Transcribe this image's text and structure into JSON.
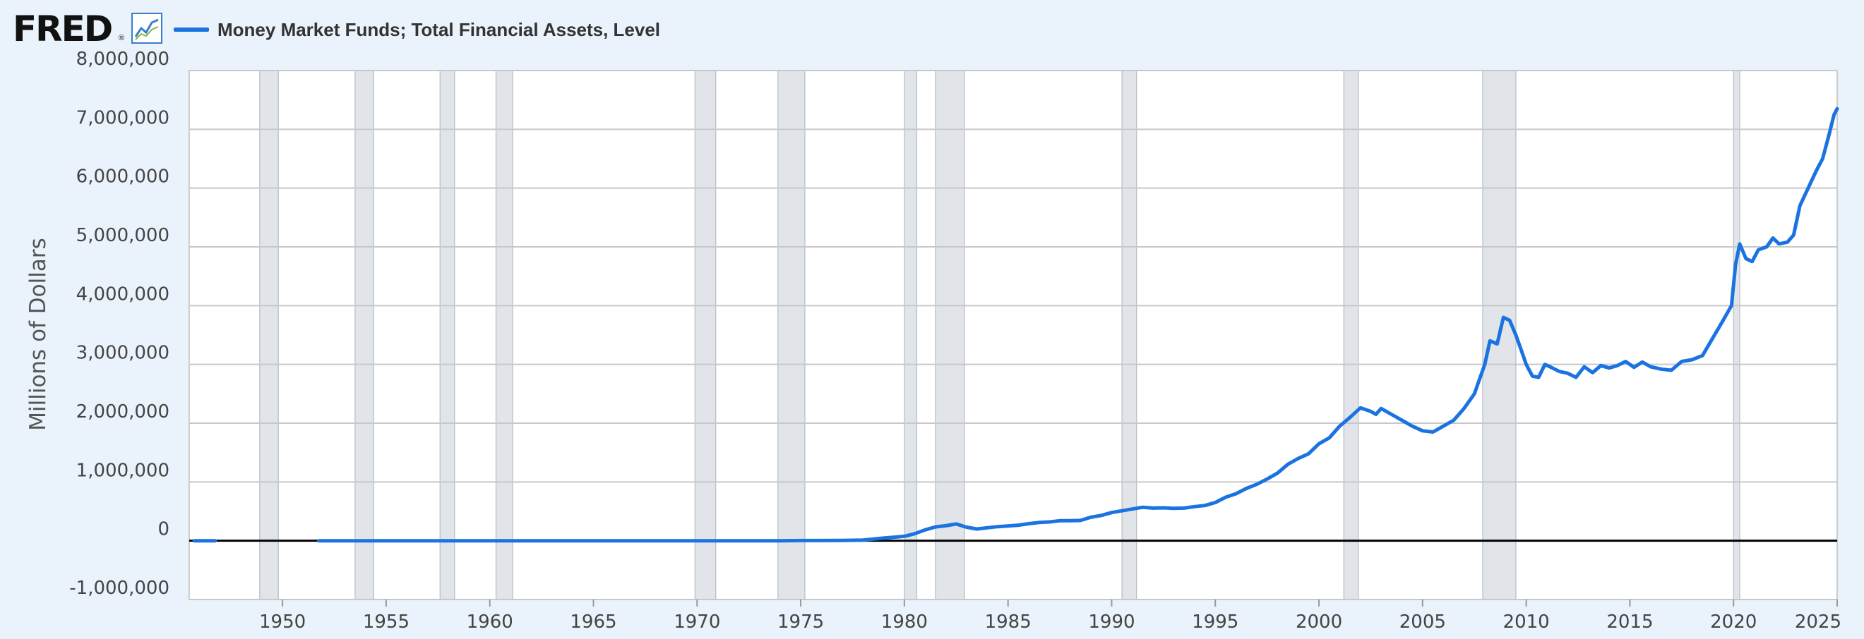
{
  "header": {
    "logo_text": "FRED",
    "logo_mark": "®",
    "logo_icon": "chart-line-icon"
  },
  "colors": {
    "background": "#eaf2fb",
    "plot_bg": "#ffffff",
    "series": "#1a73e0",
    "recession": "#e1e5ea",
    "gridline": "#c8c8c8",
    "zero_line": "#000000"
  },
  "chart_data": {
    "type": "line",
    "title": "",
    "xlabel": "",
    "ylabel": "Millions of Dollars",
    "xlim": [
      1945.5,
      2025.0
    ],
    "ylim": [
      -1000000,
      8000000
    ],
    "y_ticks": [
      -1000000,
      0,
      1000000,
      2000000,
      3000000,
      4000000,
      5000000,
      6000000,
      7000000,
      8000000
    ],
    "y_tick_labels": [
      "-1,000,000",
      "0",
      "1,000,000",
      "2,000,000",
      "3,000,000",
      "4,000,000",
      "5,000,000",
      "6,000,000",
      "7,000,000",
      "8,000,000"
    ],
    "x_ticks": [
      1950,
      1955,
      1960,
      1965,
      1970,
      1975,
      1980,
      1985,
      1990,
      1995,
      2000,
      2005,
      2010,
      2015,
      2020,
      2025
    ],
    "x_tick_labels": [
      "1950",
      "1955",
      "1960",
      "1965",
      "1970",
      "1975",
      "1980",
      "1985",
      "1990",
      "1995",
      "2000",
      "2005",
      "2010",
      "2015",
      "2020",
      "2025"
    ],
    "grid": true,
    "legend": "top-left",
    "recessions": [
      [
        1948.9,
        1949.8
      ],
      [
        1953.5,
        1954.4
      ],
      [
        1957.6,
        1958.3
      ],
      [
        1960.3,
        1961.1
      ],
      [
        1969.9,
        1970.9
      ],
      [
        1973.9,
        1975.2
      ],
      [
        1980.0,
        1980.6
      ],
      [
        1981.5,
        1982.9
      ],
      [
        1990.5,
        1991.2
      ],
      [
        2001.2,
        2001.9
      ],
      [
        2007.9,
        2009.5
      ],
      [
        2020.0,
        2020.3
      ]
    ],
    "series": [
      {
        "name": "Money Market Funds; Total Financial Assets, Level",
        "segments": [
          [
            [
              1945.75,
              0
            ],
            [
              1946.75,
              0
            ]
          ],
          [
            [
              1951.75,
              0
            ],
            [
              1955,
              0
            ],
            [
              1960,
              0
            ],
            [
              1965,
              0
            ],
            [
              1970,
              0
            ],
            [
              1974,
              0
            ],
            [
              1975,
              3000
            ],
            [
              1976,
              3500
            ],
            [
              1977,
              4000
            ],
            [
              1978,
              10000
            ],
            [
              1979,
              45000
            ],
            [
              1980,
              75000
            ],
            [
              1980.5,
              120000
            ],
            [
              1981,
              185000
            ],
            [
              1981.5,
              235000
            ],
            [
              1982,
              255000
            ],
            [
              1982.5,
              285000
            ],
            [
              1983,
              230000
            ],
            [
              1983.5,
              200000
            ],
            [
              1984,
              220000
            ],
            [
              1984.5,
              240000
            ],
            [
              1985,
              250000
            ],
            [
              1985.5,
              265000
            ],
            [
              1986,
              290000
            ],
            [
              1986.5,
              310000
            ],
            [
              1987,
              320000
            ],
            [
              1987.5,
              340000
            ],
            [
              1988,
              340000
            ],
            [
              1988.5,
              345000
            ],
            [
              1989,
              400000
            ],
            [
              1989.5,
              430000
            ],
            [
              1990,
              480000
            ],
            [
              1990.5,
              510000
            ],
            [
              1991,
              540000
            ],
            [
              1991.5,
              570000
            ],
            [
              1992,
              555000
            ],
            [
              1992.5,
              560000
            ],
            [
              1993,
              550000
            ],
            [
              1993.5,
              555000
            ],
            [
              1994,
              580000
            ],
            [
              1994.5,
              600000
            ],
            [
              1995,
              650000
            ],
            [
              1995.5,
              740000
            ],
            [
              1996,
              800000
            ],
            [
              1996.5,
              890000
            ],
            [
              1997,
              960000
            ],
            [
              1997.5,
              1050000
            ],
            [
              1998,
              1150000
            ],
            [
              1998.5,
              1300000
            ],
            [
              1999,
              1400000
            ],
            [
              1999.5,
              1480000
            ],
            [
              2000,
              1650000
            ],
            [
              2000.5,
              1750000
            ],
            [
              2001,
              1950000
            ],
            [
              2001.5,
              2100000
            ],
            [
              2002,
              2260000
            ],
            [
              2002.5,
              2200000
            ],
            [
              2002.75,
              2150000
            ],
            [
              2003,
              2250000
            ],
            [
              2003.5,
              2150000
            ],
            [
              2004,
              2050000
            ],
            [
              2004.5,
              1950000
            ],
            [
              2005,
              1870000
            ],
            [
              2005.5,
              1850000
            ],
            [
              2006,
              1950000
            ],
            [
              2006.5,
              2050000
            ],
            [
              2007,
              2250000
            ],
            [
              2007.5,
              2500000
            ],
            [
              2008,
              3000000
            ],
            [
              2008.25,
              3400000
            ],
            [
              2008.6,
              3350000
            ],
            [
              2008.9,
              3800000
            ],
            [
              2009.2,
              3750000
            ],
            [
              2009.5,
              3500000
            ],
            [
              2009.8,
              3200000
            ],
            [
              2010,
              3000000
            ],
            [
              2010.3,
              2800000
            ],
            [
              2010.6,
              2780000
            ],
            [
              2010.9,
              3000000
            ],
            [
              2011.2,
              2950000
            ],
            [
              2011.6,
              2880000
            ],
            [
              2012,
              2850000
            ],
            [
              2012.4,
              2780000
            ],
            [
              2012.8,
              2960000
            ],
            [
              2013.2,
              2860000
            ],
            [
              2013.6,
              2980000
            ],
            [
              2014,
              2940000
            ],
            [
              2014.4,
              2980000
            ],
            [
              2014.8,
              3050000
            ],
            [
              2015.2,
              2950000
            ],
            [
              2015.6,
              3040000
            ],
            [
              2016,
              2960000
            ],
            [
              2016.5,
              2920000
            ],
            [
              2017,
              2900000
            ],
            [
              2017.5,
              3050000
            ],
            [
              2018,
              3080000
            ],
            [
              2018.5,
              3150000
            ],
            [
              2019,
              3450000
            ],
            [
              2019.5,
              3750000
            ],
            [
              2019.9,
              4000000
            ],
            [
              2020.1,
              4700000
            ],
            [
              2020.3,
              5050000
            ],
            [
              2020.6,
              4800000
            ],
            [
              2020.9,
              4750000
            ],
            [
              2021.2,
              4950000
            ],
            [
              2021.6,
              5000000
            ],
            [
              2021.9,
              5150000
            ],
            [
              2022.2,
              5050000
            ],
            [
              2022.6,
              5080000
            ],
            [
              2022.9,
              5200000
            ],
            [
              2023.2,
              5700000
            ],
            [
              2023.6,
              6000000
            ],
            [
              2024,
              6300000
            ],
            [
              2024.3,
              6500000
            ],
            [
              2024.6,
              6900000
            ],
            [
              2024.85,
              7250000
            ],
            [
              2025,
              7350000
            ]
          ]
        ]
      }
    ]
  }
}
